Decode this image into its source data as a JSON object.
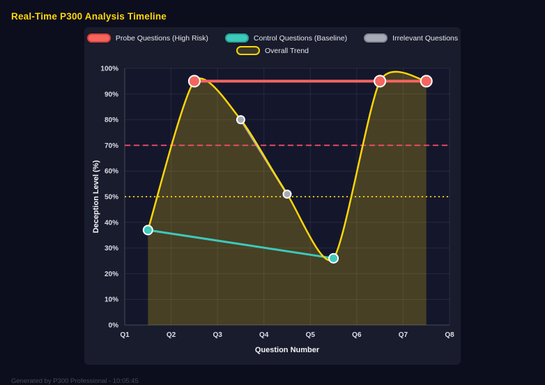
{
  "page": {
    "title": "Real-Time P300 Analysis Timeline",
    "footer": "Generated by P300 Professional - 10:05:45"
  },
  "colors": {
    "background": "#0c0e1d",
    "panel": "#191c2d",
    "plot_bg": "#14172c",
    "grid": "rgba(255,255,255,0.08)",
    "axis_border": "rgba(255,255,255,0.14)",
    "tick_text": "#dcdee6",
    "axis_text": "#f4f5f9",
    "title": "#ffd60a",
    "footer": "#454a58"
  },
  "chart_data": {
    "type": "line",
    "title": "Real-Time P300 Analysis Timeline",
    "xlabel": "Question Number",
    "ylabel": "Deception Level (%)",
    "x_ticks": [
      "Q1",
      "Q2",
      "Q3",
      "Q4",
      "Q5",
      "Q6",
      "Q7",
      "Q8"
    ],
    "xlim": [
      1,
      8
    ],
    "ylim": [
      0,
      100
    ],
    "y_tick_step": 10,
    "y_tick_suffix": "%",
    "grid": true,
    "legend_position": "top",
    "legend_rows": [
      [
        "probe",
        "control",
        "irrelevant"
      ],
      [
        "trend"
      ]
    ],
    "series": [
      {
        "id": "trend",
        "name": "Overall Trend",
        "color": "#ffd60a",
        "border": "#ffd60a",
        "points": [
          [
            1.5,
            37
          ],
          [
            2.5,
            95
          ],
          [
            3.5,
            80
          ],
          [
            4.5,
            51
          ],
          [
            5.5,
            26
          ],
          [
            6.5,
            95
          ],
          [
            7.5,
            95
          ]
        ],
        "line_width": 2.5,
        "marker_radius": 0,
        "smooth": true,
        "fill": true,
        "fill_opacity": 0.22
      },
      {
        "id": "control",
        "name": "Control Questions (Baseline)",
        "color": "#3ec9bb",
        "border": "#26a89b",
        "points": [
          [
            1.5,
            37
          ],
          [
            5.5,
            26
          ]
        ],
        "line_width": 3,
        "marker_radius": 6.5,
        "smooth": false,
        "fill": false
      },
      {
        "id": "irrelevant",
        "name": "Irrelevant Questions",
        "color": "#a6abb5",
        "border": "#878c96",
        "points": [
          [
            3.5,
            80
          ],
          [
            4.5,
            51
          ]
        ],
        "line_width": 3,
        "marker_radius": 5.5,
        "smooth": false,
        "fill": false
      },
      {
        "id": "probe",
        "name": "Probe Questions (High Risk)",
        "color": "#f4655f",
        "border": "#e0403a",
        "points": [
          [
            2.5,
            95
          ],
          [
            6.5,
            95
          ],
          [
            7.5,
            95
          ]
        ],
        "line_width": 4,
        "marker_radius": 8,
        "smooth": false,
        "fill": false
      }
    ],
    "thresholds": [
      {
        "value": 70,
        "color": "#ff4d6d",
        "style": "dashed",
        "width": 1.8
      },
      {
        "value": 50,
        "color": "#ffd60a",
        "style": "dotted",
        "width": 1.8
      }
    ]
  }
}
